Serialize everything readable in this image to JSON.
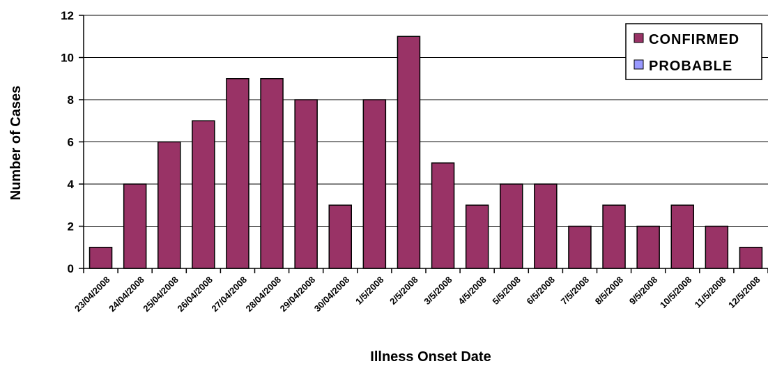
{
  "chart_data": {
    "type": "bar",
    "title": "",
    "xlabel": "Illness Onset Date",
    "ylabel": "Number of Cases",
    "ylim": [
      0,
      12
    ],
    "yticks": [
      "0",
      "2",
      "4",
      "6",
      "8",
      "10",
      "12"
    ],
    "grid": "horizontal",
    "legend_position": "top-right",
    "categories": [
      "23/04/2008",
      "24/04/2008",
      "25/04/2008",
      "26/04/2008",
      "27/04/2008",
      "28/04/2008",
      "29/04/2008",
      "30/04/2008",
      "1/5/2008",
      "2/5/2008",
      "3/5/2008",
      "4/5/2008",
      "5/5/2008",
      "6/5/2008",
      "7/5/2008",
      "8/5/2008",
      "9/5/2008",
      "10/5/2008",
      "11/5/2008",
      "12/5/2008"
    ],
    "series": [
      {
        "name": "CONFIRMED",
        "color": "#993366",
        "values": [
          1,
          4,
          6,
          7,
          9,
          9,
          8,
          3,
          8,
          11,
          5,
          3,
          4,
          4,
          2,
          3,
          2,
          3,
          2,
          1
        ]
      },
      {
        "name": "PROBABLE",
        "color": "#9999FF",
        "values": [
          0,
          0,
          0,
          0,
          0,
          0,
          0,
          0,
          0,
          0,
          0,
          0,
          0,
          0,
          0,
          0,
          0,
          0,
          0,
          0
        ]
      }
    ]
  }
}
